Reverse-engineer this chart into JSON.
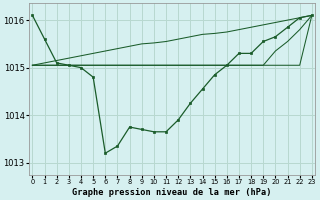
{
  "title": "Graphe pression niveau de la mer (hPa)",
  "bg_color": "#d6f0f0",
  "grid_color": "#b8d8d0",
  "line_color": "#1a5c2a",
  "marker_color": "#1a5c2a",
  "xlim": [
    -0.3,
    23.3
  ],
  "ylim": [
    1012.75,
    1016.35
  ],
  "yticks": [
    1013,
    1014,
    1015,
    1016
  ],
  "xtick_labels": [
    "0",
    "1",
    "2",
    "3",
    "4",
    "5",
    "6",
    "7",
    "8",
    "9",
    "10",
    "11",
    "12",
    "13",
    "14",
    "15",
    "16",
    "17",
    "18",
    "19",
    "20",
    "21",
    "22",
    "23"
  ],
  "series_main": [
    1016.1,
    1015.6,
    1015.1,
    1015.05,
    1015.0,
    1014.8,
    1013.2,
    1013.35,
    1013.75,
    1013.7,
    1013.65,
    1013.65,
    1013.9,
    1014.25,
    1014.55,
    1014.85,
    1015.05,
    1015.3,
    1015.3,
    1015.55,
    1015.65,
    1015.85,
    1016.05,
    1016.1
  ],
  "series_flat1": [
    1015.05,
    1015.05,
    1015.05,
    1015.05,
    1015.05,
    1015.05,
    1015.05,
    1015.05,
    1015.05,
    1015.05,
    1015.05,
    1015.05,
    1015.05,
    1015.05,
    1015.05,
    1015.05,
    1015.05,
    1015.05,
    1015.05,
    1015.05,
    1015.05,
    1015.05,
    1015.05,
    1016.1
  ],
  "series_flat2": [
    1015.05,
    1015.05,
    1015.05,
    1015.05,
    1015.05,
    1015.05,
    1015.05,
    1015.05,
    1015.05,
    1015.05,
    1015.05,
    1015.05,
    1015.05,
    1015.05,
    1015.05,
    1015.05,
    1015.05,
    1015.05,
    1015.05,
    1015.05,
    1015.35,
    1015.55,
    1015.8,
    1016.1
  ],
  "series_diag": [
    1015.05,
    1015.1,
    1015.15,
    1015.2,
    1015.25,
    1015.3,
    1015.35,
    1015.4,
    1015.45,
    1015.5,
    1015.52,
    1015.55,
    1015.6,
    1015.65,
    1015.7,
    1015.72,
    1015.75,
    1015.8,
    1015.85,
    1015.9,
    1015.95,
    1016.0,
    1016.05,
    1016.1
  ],
  "figsize": [
    3.2,
    2.0
  ],
  "dpi": 100
}
